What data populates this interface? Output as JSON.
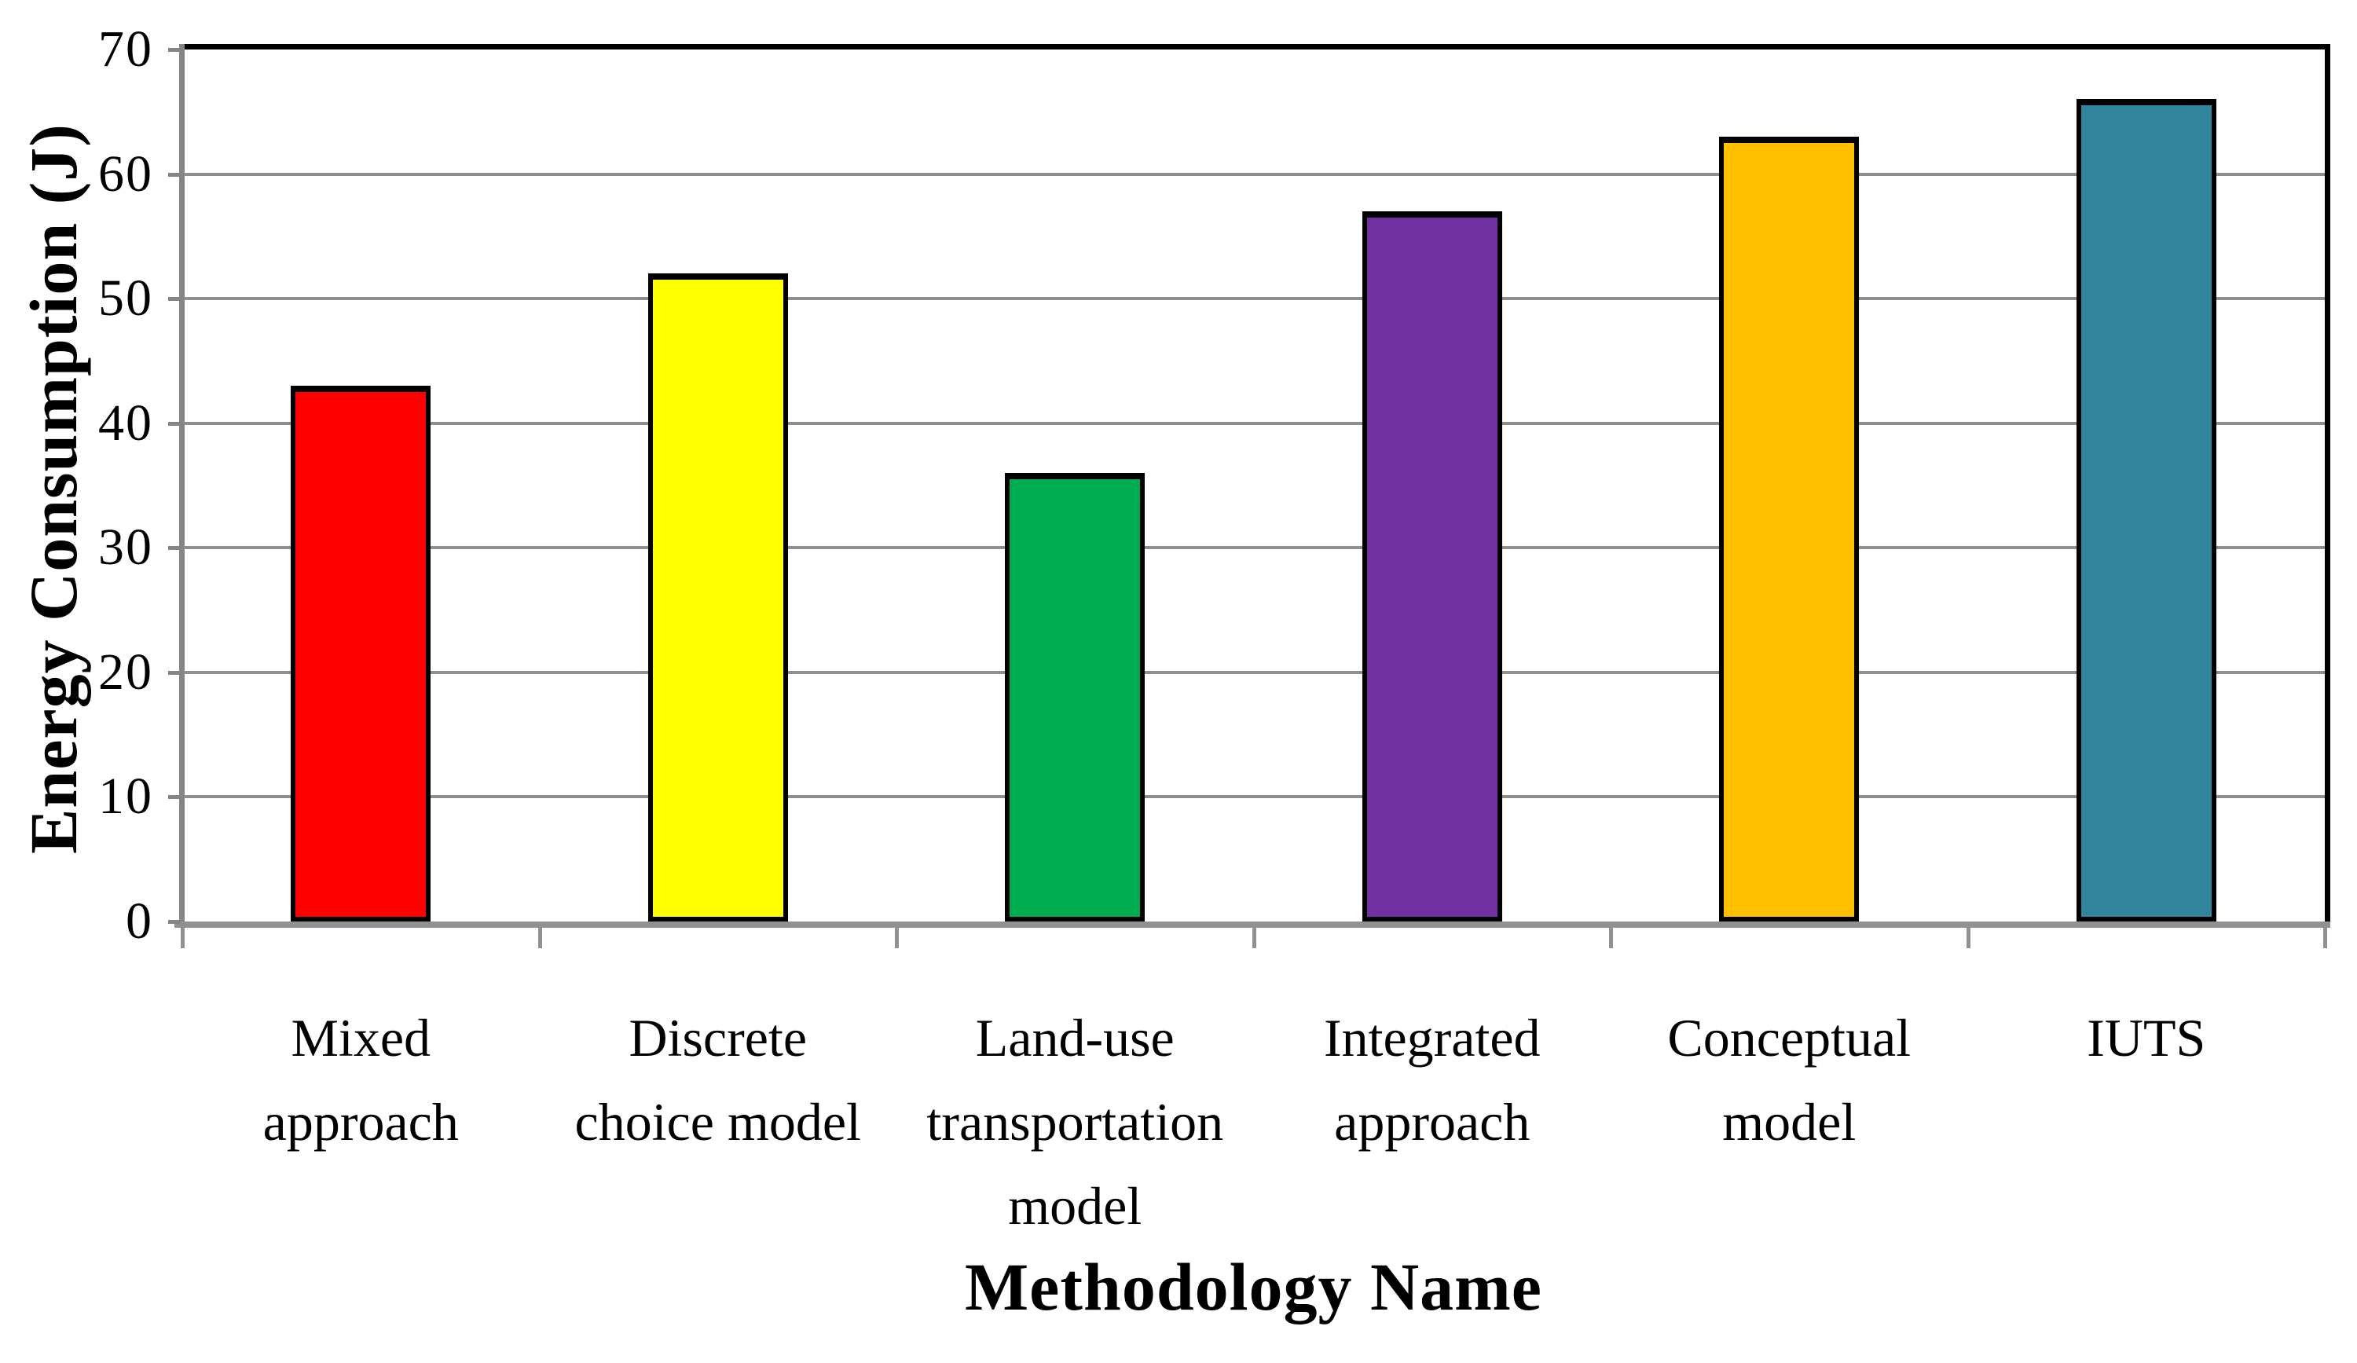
{
  "chart_data": {
    "type": "bar",
    "title": "",
    "xlabel": "Methodology Name",
    "ylabel": "Energy Consumption (J)",
    "categories": [
      "Mixed approach",
      "Discrete choice model",
      "Land-use transportation model",
      "Integrated approach",
      "Conceptual model",
      "IUTS"
    ],
    "category_lines": [
      [
        "Mixed",
        "approach"
      ],
      [
        "Discrete",
        "choice model"
      ],
      [
        "Land-use",
        "transportation",
        "model"
      ],
      [
        "Integrated",
        "approach"
      ],
      [
        "Conceptual",
        "model"
      ],
      [
        "IUTS"
      ]
    ],
    "values": [
      43,
      52,
      36,
      57,
      63,
      66
    ],
    "bar_colors": [
      "#FF0000",
      "#FFFF00",
      "#00AC50",
      "#7030A0",
      "#FFC000",
      "#31859C"
    ],
    "yticks": [
      0,
      10,
      20,
      30,
      40,
      50,
      60,
      70
    ],
    "ylim": [
      0,
      70
    ],
    "grid": true,
    "legend": "none",
    "gridline_color": "#8E8E8E",
    "axis_color": "#858585",
    "plot_border_color": "#000000",
    "bar_border_color": "#000000",
    "background_color": "#FFFFFF"
  }
}
